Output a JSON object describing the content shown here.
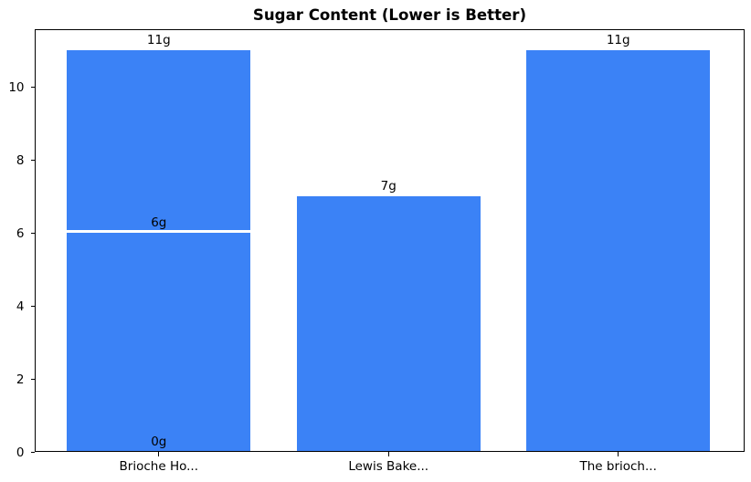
{
  "chart_data": {
    "type": "bar",
    "title": "Sugar Content (Lower is Better)",
    "categories": [
      "Brioche Ho...",
      "Lewis Bake...",
      "The brioch..."
    ],
    "series": [
      {
        "category": "Brioche Ho...",
        "values": [
          11,
          6,
          0
        ],
        "bar_labels": [
          "11g",
          "6g",
          "0g"
        ]
      },
      {
        "category": "Lewis Bake...",
        "values": [
          7
        ],
        "bar_labels": [
          "7g"
        ]
      },
      {
        "category": "The brioch...",
        "values": [
          11
        ],
        "bar_labels": [
          "11g"
        ]
      }
    ],
    "xlabel": "",
    "ylabel": "",
    "yticks": [
      0,
      2,
      4,
      6,
      8,
      10
    ],
    "ylim": [
      0,
      11.575
    ],
    "xlim": [
      -0.54,
      2.55
    ],
    "bar_width_fraction": 0.8,
    "grid": false,
    "legend": false,
    "colors": {
      "bar": "#3b82f6",
      "bar_edge": "#ffffff",
      "text": "#000000",
      "background": "#ffffff",
      "spine": "#000000"
    }
  }
}
